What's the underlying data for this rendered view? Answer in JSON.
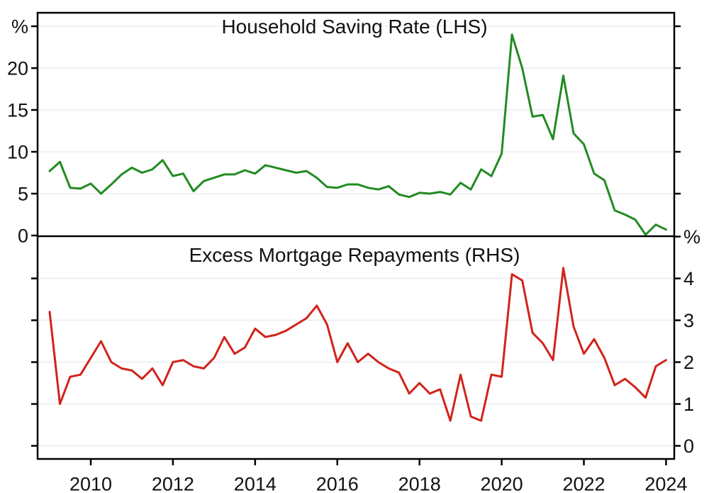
{
  "figure": {
    "background": "#ffffff",
    "panels": [
      "Household Saving Rate (LHS)",
      "Excess Mortgage Repayments (RHS)"
    ]
  },
  "colors": {
    "saving_rate_line": "#228b22",
    "mortgage_line": "#d1231b",
    "grid": "#e8eef1",
    "axis": "#000000",
    "text": "#111111"
  },
  "x_axis": {
    "tick_labels": [
      "2010",
      "2012",
      "2014",
      "2016",
      "2018",
      "2020",
      "2022",
      "2024"
    ],
    "xlim": [
      2008.7,
      2024.2
    ],
    "frequency": "quarterly"
  },
  "chart_data": [
    {
      "type": "line",
      "panel": "top",
      "title": "Household Saving Rate (LHS)",
      "series_name": "Household Saving Rate",
      "axis_side": "left",
      "unit_label": "%",
      "unit_tick_value": 25,
      "yticks": [
        0,
        5,
        10,
        15,
        20
      ],
      "ylim": [
        0,
        26.6
      ],
      "grid": true,
      "x_start": 2009.0,
      "x_step": 0.25,
      "values": [
        7.7,
        8.8,
        5.7,
        5.6,
        6.2,
        5.0,
        6.1,
        7.3,
        8.1,
        7.5,
        7.9,
        9.0,
        7.1,
        7.4,
        5.3,
        6.5,
        6.9,
        7.3,
        7.3,
        7.8,
        7.4,
        8.4,
        8.1,
        7.8,
        7.5,
        7.7,
        6.9,
        5.8,
        5.7,
        6.1,
        6.1,
        5.7,
        5.5,
        5.9,
        4.9,
        4.6,
        5.1,
        5.0,
        5.2,
        4.9,
        6.3,
        5.5,
        7.9,
        7.1,
        9.8,
        24.0,
        20.0,
        14.2,
        14.4,
        11.5,
        19.1,
        12.2,
        10.9,
        7.4,
        6.6,
        3.0,
        2.5,
        1.9,
        0.1,
        1.3,
        0.7
      ]
    },
    {
      "type": "line",
      "panel": "bottom",
      "title": "Excess Mortgage Repayments (RHS)",
      "series_name": "Excess Mortgage Repayments",
      "axis_side": "right",
      "unit_label": "%",
      "unit_tick_value": 5,
      "yticks": [
        0,
        1,
        2,
        3,
        4
      ],
      "ylim": [
        -0.3,
        5.0
      ],
      "grid": true,
      "x_start": 2009.0,
      "x_step": 0.25,
      "values": [
        3.2,
        1.0,
        1.65,
        1.7,
        2.1,
        2.5,
        2.0,
        1.85,
        1.8,
        1.6,
        1.85,
        1.45,
        2.0,
        2.05,
        1.9,
        1.85,
        2.1,
        2.6,
        2.2,
        2.35,
        2.8,
        2.6,
        2.65,
        2.75,
        2.9,
        3.05,
        3.35,
        2.9,
        2.0,
        2.45,
        2.0,
        2.2,
        2.0,
        1.85,
        1.75,
        1.25,
        1.5,
        1.25,
        1.35,
        0.6,
        1.7,
        0.7,
        0.6,
        1.7,
        1.65,
        4.1,
        3.95,
        2.7,
        2.45,
        2.05,
        4.25,
        2.85,
        2.2,
        2.55,
        2.1,
        1.45,
        1.6,
        1.4,
        1.15,
        1.9,
        2.05
      ]
    }
  ]
}
